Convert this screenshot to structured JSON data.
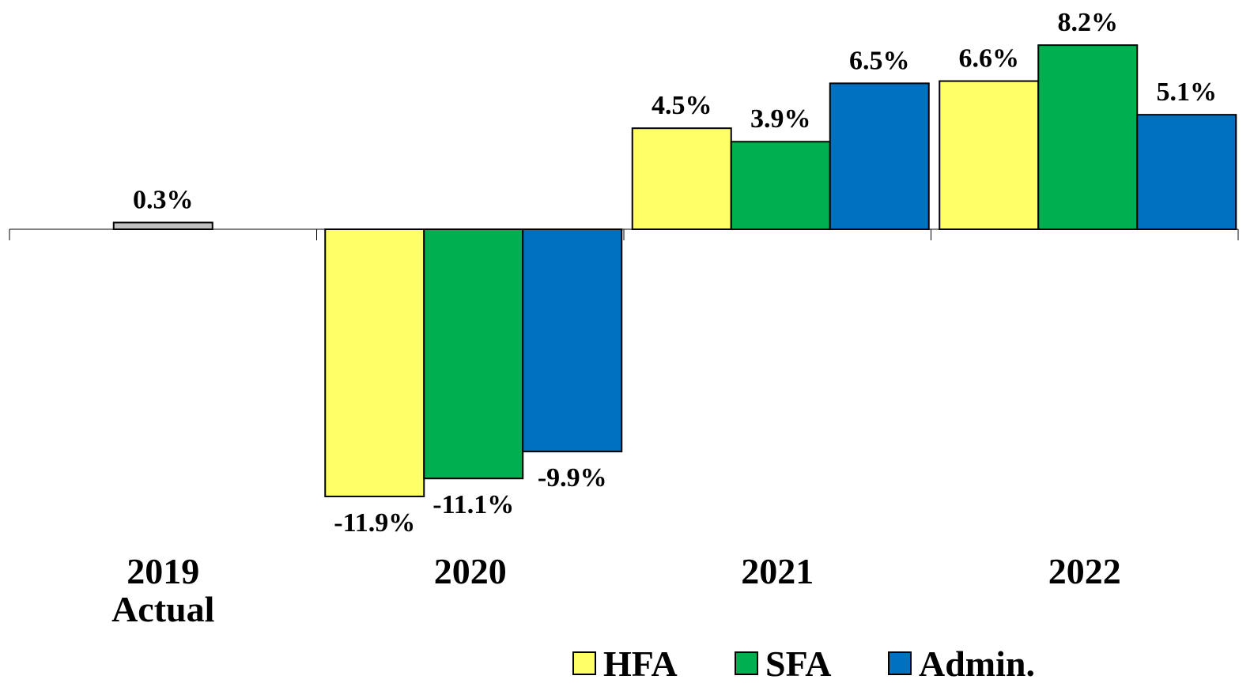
{
  "chart_data": {
    "type": "bar",
    "title": "",
    "xlabel": "",
    "ylabel": "",
    "ylim": [
      -13.5,
      9.0
    ],
    "grid": false,
    "legend_position": "bottom-right",
    "categories": [
      {
        "lines": [
          "2019",
          "Actual"
        ]
      },
      {
        "lines": [
          "2020"
        ]
      },
      {
        "lines": [
          "2021"
        ]
      },
      {
        "lines": [
          "2022"
        ]
      }
    ],
    "series": [
      {
        "name": "HFA",
        "color": "#FFFF66",
        "values": [
          null,
          -11.9,
          4.5,
          6.6
        ],
        "labels": [
          "",
          "-11.9%",
          "4.5%",
          "6.6%"
        ]
      },
      {
        "name": "SFA",
        "color": "#00B050",
        "values": [
          null,
          -11.1,
          3.9,
          8.2
        ],
        "labels": [
          "",
          "-11.1%",
          "3.9%",
          "8.2%"
        ]
      },
      {
        "name": "Admin.",
        "color": "#0070C0",
        "values": [
          null,
          -9.9,
          6.5,
          5.1
        ],
        "labels": [
          "",
          "-9.9%",
          "6.5%",
          "5.1%"
        ]
      }
    ],
    "total_2019": {
      "value": 0.3,
      "label": "0.3%",
      "color": "#C0C0C0"
    }
  }
}
